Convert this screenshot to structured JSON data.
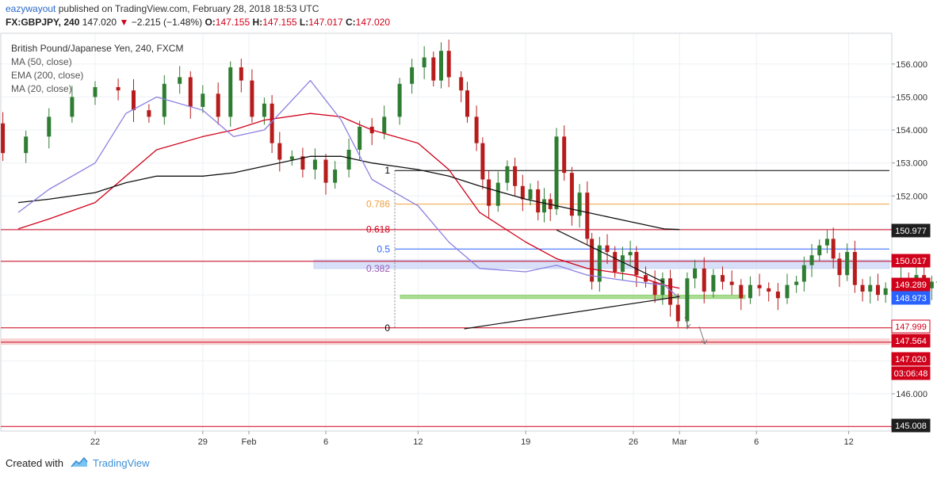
{
  "header": {
    "author": "eazywayout",
    "published_text": "published on TradingView.com, February 28, 2018 18:53 UTC",
    "symbol": "FX:GBPJPY, 240",
    "last": "147.020",
    "change_arrow": "▼",
    "change": "−2.215 (−1.48%)",
    "open_label": "O:",
    "open": "147.155",
    "high_label": "H:",
    "high": "147.155",
    "low_label": "L:",
    "low": "147.017",
    "close_label": "C:",
    "close": "147.020"
  },
  "legend": {
    "title": "British Pound/Japanese Yen, 240, FXCM",
    "indicators": [
      "MA (50, close)",
      "EMA (200, close)",
      "MA (20, close)"
    ]
  },
  "colors": {
    "up": "#2e7d32",
    "down": "#b71c1c",
    "ma50": "#d0021b",
    "ema200": "#111111",
    "ma20": "#8b7fe0",
    "grid": "#eef0f3",
    "label_red": "#d0021b",
    "label_blue": "#2962ff"
  },
  "x_axis": {
    "ticks": [
      {
        "label": "22",
        "date": "2018-01-22"
      },
      {
        "label": "29",
        "date": "2018-01-29"
      },
      {
        "label": "Feb",
        "date": "2018-02-01"
      },
      {
        "label": "6",
        "date": "2018-02-06"
      },
      {
        "label": "12",
        "date": "2018-02-12"
      },
      {
        "label": "19",
        "date": "2018-02-19"
      },
      {
        "label": "26",
        "date": "2018-02-26"
      },
      {
        "label": "Mar",
        "date": "2018-03-01"
      },
      {
        "label": "6",
        "date": "2018-03-06"
      },
      {
        "label": "12",
        "date": "2018-03-12"
      }
    ]
  },
  "y_axis": {
    "ticks": [
      "146.000",
      "147.000",
      "148.000",
      "149.000",
      "150.000",
      "151.000",
      "152.000",
      "153.000",
      "154.000",
      "155.000",
      "156.000"
    ],
    "range": [
      144.8,
      156.9
    ]
  },
  "price_labels": [
    {
      "value": "150.977",
      "style": "dark"
    },
    {
      "value": "150.017",
      "style": "red"
    },
    {
      "value": "149.289",
      "style": "red"
    },
    {
      "value": "148.973",
      "style": "blue"
    },
    {
      "value": "147.999",
      "style": "outline"
    },
    {
      "value": "147.564",
      "style": "red"
    },
    {
      "value": "147.020",
      "style": "red"
    },
    {
      "value": "03:06:48",
      "style": "red"
    },
    {
      "value": "145.008",
      "style": "dark"
    }
  ],
  "fib_levels": [
    {
      "label": "1",
      "price": 152.77,
      "color": "#000000"
    },
    {
      "label": "0.786",
      "price": 151.75,
      "color": "#f0a040"
    },
    {
      "label": "0.618",
      "price": 150.98,
      "color": "#d0021b"
    },
    {
      "label": "0.5",
      "price": 150.39,
      "color": "#2962ff"
    },
    {
      "label": "0.382",
      "price": 149.8,
      "color": "#9b59b6"
    },
    {
      "label": "0",
      "price": 148.0,
      "color": "#000000"
    }
  ],
  "zones": [
    {
      "name": "resistance-zone",
      "from": 149.8,
      "to": 150.06,
      "color": "#c9d6f5"
    },
    {
      "name": "support-zone",
      "from": 148.89,
      "to": 148.99,
      "color": "#8fd16f"
    },
    {
      "name": "target-zone",
      "from": 147.5,
      "to": 147.66,
      "color": "#f6c8c8"
    }
  ],
  "horizontal_lines": [
    {
      "price": 150.977,
      "color": "#d0021b"
    },
    {
      "price": 150.017,
      "color": "#d0021b"
    },
    {
      "price": 148.0,
      "color": "#d0021b"
    },
    {
      "price": 147.564,
      "color": "#d0021b"
    },
    {
      "price": 145.008,
      "color": "#d0021b"
    }
  ],
  "trendlines": [
    {
      "name": "upper-trendline",
      "from": {
        "date": "2018-02-21",
        "price": 150.97
      },
      "to": {
        "date": "2018-02-28",
        "price": 149.38
      }
    },
    {
      "name": "lower-trendline",
      "from": {
        "date": "2018-02-15",
        "price": 147.97
      },
      "to": {
        "date": "2018-03-01",
        "price": 148.95
      }
    }
  ],
  "chart_data": {
    "type": "line",
    "title": "British Pound/Japanese Yen, 240, FXCM",
    "xlabel": "",
    "ylabel": "",
    "ylim": [
      144.8,
      156.9
    ],
    "x": [
      "2018-01-17",
      "2018-01-19",
      "2018-01-22",
      "2018-01-24",
      "2018-01-26",
      "2018-01-29",
      "2018-01-31",
      "2018-02-02",
      "2018-02-05",
      "2018-02-07",
      "2018-02-09",
      "2018-02-12",
      "2018-02-14",
      "2018-02-16",
      "2018-02-19",
      "2018-02-21",
      "2018-02-23",
      "2018-02-26",
      "2018-02-28",
      "2018-03-01"
    ],
    "series": [
      {
        "name": "MA (50, close)",
        "values": [
          151.0,
          151.3,
          151.8,
          152.6,
          153.4,
          153.8,
          154.0,
          154.3,
          154.5,
          154.4,
          154.0,
          153.6,
          152.8,
          151.5,
          150.6,
          150.1,
          149.8,
          149.6,
          149.3,
          149.2
        ]
      },
      {
        "name": "EMA (200, close)",
        "values": [
          151.8,
          151.9,
          152.1,
          152.4,
          152.6,
          152.6,
          152.7,
          152.9,
          153.2,
          153.2,
          153.0,
          152.8,
          152.6,
          152.3,
          151.9,
          151.7,
          151.5,
          151.2,
          151.0,
          150.98
        ]
      },
      {
        "name": "MA (20, close)",
        "values": [
          151.5,
          152.2,
          153.0,
          154.5,
          155.0,
          154.6,
          153.8,
          154.0,
          155.5,
          154.3,
          152.5,
          151.7,
          150.6,
          149.8,
          149.7,
          149.9,
          149.6,
          149.4,
          149.3,
          148.9
        ]
      }
    ]
  }
}
